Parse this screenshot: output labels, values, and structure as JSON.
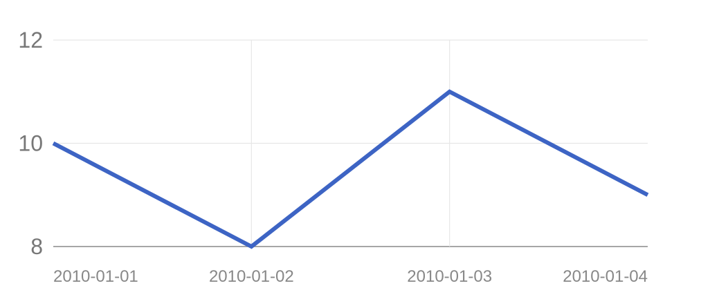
{
  "chart_data": {
    "type": "line",
    "title": "",
    "xlabel": "",
    "ylabel": "",
    "categories": [
      "2010-01-01",
      "2010-01-02",
      "2010-01-03",
      "2010-01-04"
    ],
    "series": [
      {
        "values": [
          10,
          8,
          11,
          9
        ],
        "color": "#3d64c4"
      }
    ],
    "ylim": [
      8,
      12
    ],
    "yticks": [
      "8",
      "10",
      "12"
    ],
    "grid": true,
    "legend": "none",
    "colors": {
      "grid": "#e6e6e6",
      "baseline": "#888888",
      "text": "#888888"
    }
  }
}
